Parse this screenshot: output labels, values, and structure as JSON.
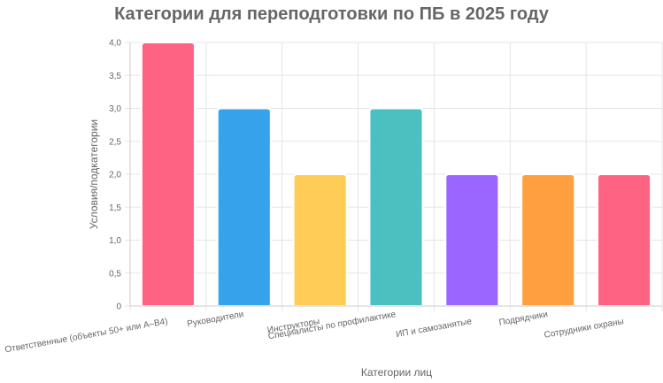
{
  "chart_data": {
    "type": "bar",
    "title": "Категории для переподготовки по ПБ в 2025 году",
    "xlabel": "Категории лиц",
    "ylabel": "Условия/подкатегории",
    "ylim": [
      0,
      4
    ],
    "yticks": [
      "0",
      "0,5",
      "1,0",
      "1,5",
      "2,0",
      "2,5",
      "3,0",
      "3,5",
      "4,0"
    ],
    "categories": [
      "Ответственные (объекты 50+ или А–В4)",
      "Руководители",
      "Инструкторы",
      "Специалисты по профилактике",
      "ИП и самозанятые",
      "Подрядчики",
      "Сотрудники охраны"
    ],
    "values": [
      4,
      3,
      2,
      3,
      2,
      2,
      2
    ],
    "colors": [
      "#FF6384",
      "#36A2EB",
      "#FFCD56",
      "#4BC0C0",
      "#9966FF",
      "#FF9F40",
      "#FF6384"
    ],
    "grid": true,
    "legend": "none"
  }
}
